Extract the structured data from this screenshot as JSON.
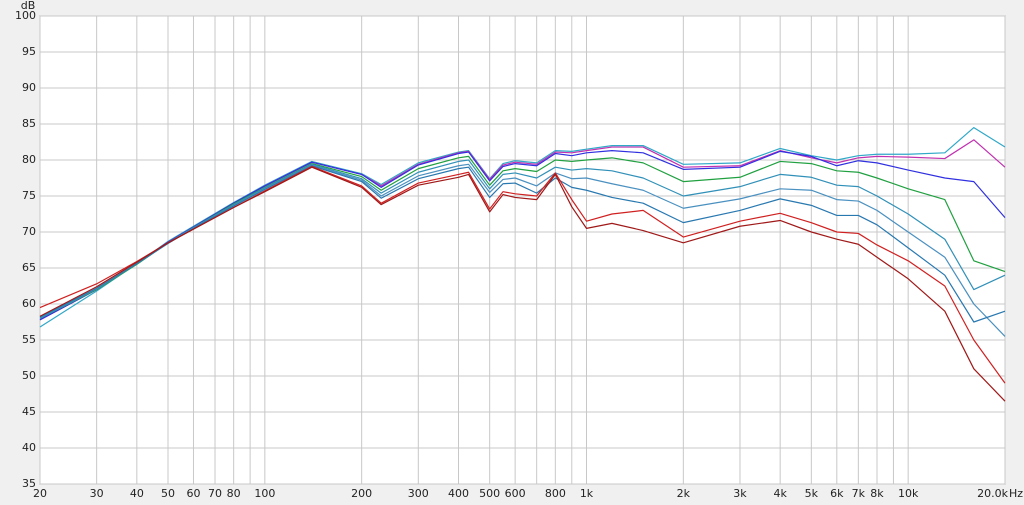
{
  "chart_data": {
    "type": "line",
    "y_label": "dB",
    "x_unit": "Hz",
    "xscale": "log",
    "grid": true,
    "xlim": [
      20,
      20000
    ],
    "ylim": [
      35,
      100
    ],
    "yticks": [
      35,
      40,
      45,
      50,
      55,
      60,
      65,
      70,
      75,
      80,
      85,
      90,
      95,
      100
    ],
    "xticks": [
      20,
      30,
      40,
      50,
      60,
      70,
      80,
      100,
      200,
      300,
      400,
      500,
      600,
      800,
      {
        "value": 1000,
        "label": "1k"
      },
      {
        "value": 2000,
        "label": "2k"
      },
      {
        "value": 3000,
        "label": "3k"
      },
      {
        "value": 4000,
        "label": "4k"
      },
      {
        "value": 5000,
        "label": "5k"
      },
      {
        "value": 6000,
        "label": "6k"
      },
      {
        "value": 7000,
        "label": "7k"
      },
      {
        "value": 8000,
        "label": "8k"
      },
      {
        "value": 10000,
        "label": "10k"
      },
      {
        "value": 20000,
        "label": "20.0k"
      }
    ],
    "xminor": [
      90,
      700,
      900,
      9000
    ],
    "x": [
      20,
      30,
      40,
      50,
      60,
      80,
      100,
      140,
      200,
      230,
      300,
      400,
      430,
      500,
      550,
      600,
      700,
      800,
      900,
      1000,
      1200,
      1500,
      2000,
      3000,
      4000,
      5000,
      6000,
      7000,
      8000,
      10000,
      13000,
      16000,
      20000
    ],
    "series": [
      {
        "color": "#30a8c8",
        "values": [
          56.8,
          61.8,
          65.6,
          68.7,
          70.8,
          74.1,
          76.5,
          79.8,
          78.1,
          76.6,
          79.6,
          81.1,
          81.3,
          77.4,
          79.5,
          79.9,
          79.6,
          81.3,
          81.2,
          81.5,
          82.0,
          82.0,
          79.4,
          79.6,
          81.6,
          80.6,
          80.0,
          80.6,
          80.8,
          80.8,
          81.0,
          84.5,
          81.8
        ]
      },
      {
        "color": "#c030b0",
        "values": [
          57.8,
          62.0,
          65.6,
          68.6,
          70.7,
          74.0,
          76.4,
          79.7,
          78.0,
          76.4,
          79.4,
          81.0,
          81.2,
          77.3,
          79.3,
          79.7,
          79.4,
          81.1,
          81.0,
          81.3,
          81.8,
          81.8,
          79.0,
          79.2,
          81.3,
          80.3,
          79.6,
          80.3,
          80.5,
          80.4,
          80.2,
          82.8,
          79.0
        ]
      },
      {
        "color": "#3030e0",
        "values": [
          57.8,
          62.0,
          65.6,
          68.6,
          70.7,
          74.0,
          76.4,
          79.7,
          78.0,
          76.2,
          79.3,
          80.9,
          81.1,
          77.1,
          79.1,
          79.5,
          79.2,
          80.9,
          80.6,
          81.0,
          81.3,
          81.0,
          78.7,
          79.0,
          81.2,
          80.5,
          79.2,
          79.9,
          79.6,
          78.6,
          77.5,
          77.0,
          72.0
        ]
      },
      {
        "color": "#20a040",
        "values": [
          58.0,
          62.0,
          65.5,
          68.5,
          70.6,
          73.9,
          76.2,
          79.5,
          77.7,
          75.8,
          78.8,
          80.3,
          80.5,
          76.5,
          78.5,
          78.8,
          78.4,
          80.0,
          79.8,
          80.0,
          80.3,
          79.6,
          77.0,
          77.6,
          79.8,
          79.5,
          78.5,
          78.3,
          77.5,
          76.0,
          74.5,
          66.0,
          64.5
        ]
      },
      {
        "color": "#3090b8",
        "values": [
          58.0,
          62.1,
          65.6,
          68.5,
          70.6,
          73.8,
          76.1,
          79.4,
          77.4,
          75.4,
          78.3,
          79.8,
          80.0,
          76.0,
          78.0,
          78.2,
          77.5,
          79.0,
          78.6,
          78.8,
          78.5,
          77.5,
          75.0,
          76.3,
          78.0,
          77.6,
          76.5,
          76.3,
          75.0,
          72.5,
          69.0,
          62.0,
          64.0
        ]
      },
      {
        "color": "#4a90c0",
        "values": [
          58.2,
          62.1,
          65.6,
          68.5,
          70.5,
          73.7,
          76.0,
          79.3,
          77.2,
          75.0,
          77.8,
          79.2,
          79.4,
          75.5,
          77.3,
          77.5,
          76.4,
          78.2,
          77.4,
          77.5,
          76.7,
          75.8,
          73.3,
          74.6,
          76.0,
          75.8,
          74.5,
          74.3,
          73.0,
          70.0,
          66.5,
          60.0,
          55.5
        ]
      },
      {
        "color": "#2878b0",
        "values": [
          58.2,
          62.2,
          65.6,
          68.4,
          70.5,
          73.6,
          75.9,
          79.2,
          77.0,
          74.7,
          77.4,
          78.8,
          79.0,
          74.8,
          76.7,
          76.8,
          75.4,
          77.5,
          76.2,
          75.8,
          74.8,
          74.0,
          71.3,
          73.0,
          74.6,
          73.7,
          72.3,
          72.3,
          71.0,
          67.8,
          64.0,
          57.5,
          59.0
        ]
      },
      {
        "color": "#d02020",
        "values": [
          59.5,
          62.8,
          65.9,
          68.5,
          70.4,
          73.4,
          75.7,
          79.1,
          76.4,
          74.0,
          76.8,
          78.0,
          78.3,
          73.2,
          75.6,
          75.3,
          75.0,
          78.2,
          74.5,
          71.5,
          72.5,
          73.0,
          69.3,
          71.5,
          72.6,
          71.3,
          70.0,
          69.8,
          68.2,
          66.0,
          62.5,
          55.0,
          49.0
        ]
      },
      {
        "color": "#a01818",
        "values": [
          58.3,
          62.4,
          65.8,
          68.5,
          70.4,
          73.4,
          75.6,
          79.0,
          76.2,
          73.8,
          76.5,
          77.6,
          78.0,
          72.8,
          75.2,
          74.8,
          74.5,
          78.0,
          73.5,
          70.5,
          71.2,
          70.2,
          68.5,
          70.8,
          71.6,
          70.0,
          69.0,
          68.3,
          66.5,
          63.5,
          59.0,
          51.0,
          46.5
        ]
      }
    ]
  }
}
